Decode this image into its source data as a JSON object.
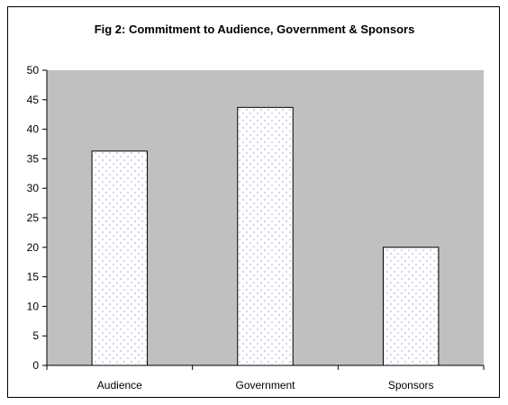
{
  "chart_data": {
    "type": "bar",
    "title": "Fig 2: Commitment to Audience, Government & Sponsors",
    "categories": [
      "Audience",
      "Government",
      "Sponsors"
    ],
    "values": [
      36.3,
      43.7,
      20.0
    ],
    "xlabel": "",
    "ylabel": "",
    "ylim": [
      0,
      50
    ],
    "yticks": [
      0,
      5,
      10,
      15,
      20,
      25,
      30,
      35,
      40,
      45,
      50
    ],
    "grid": false,
    "legend": "none"
  },
  "colors": {
    "plot_area": "#c0c0c0",
    "bar_fill": "#ffffff",
    "bar_dots": "#b4b4ee",
    "bar_edge": "#000000",
    "axis": "#000000"
  }
}
